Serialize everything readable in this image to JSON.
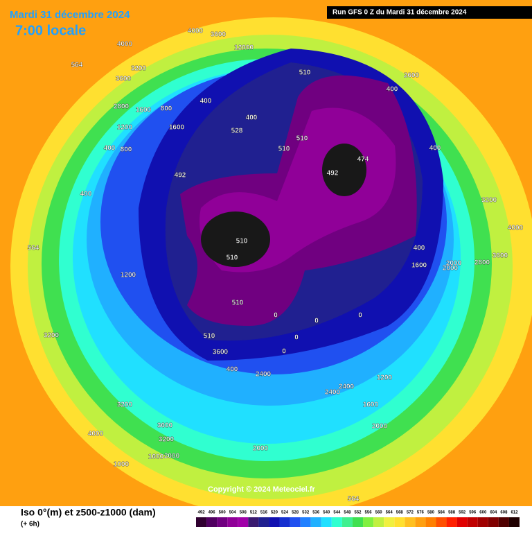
{
  "header": {
    "date": "Mardi 31 décembre 2024",
    "time": "7:00 locale",
    "run": "Run GFS 0 Z du Mardi 31 décembre 2024"
  },
  "footer": {
    "title": "Iso 0°(m) et z500-z1000 (dam)",
    "step": "(+ 6h)",
    "copyright": "Copyright © 2024 Meteociel.fr"
  },
  "legend": [
    {
      "value": 492,
      "color": "#300030"
    },
    {
      "value": 496,
      "color": "#500060"
    },
    {
      "value": 500,
      "color": "#700080"
    },
    {
      "value": 504,
      "color": "#900098"
    },
    {
      "value": 508,
      "color": "#a000a8"
    },
    {
      "value": 512,
      "color": "#3a1a70"
    },
    {
      "value": 516,
      "color": "#202090"
    },
    {
      "value": 520,
      "color": "#1010b0"
    },
    {
      "value": 524,
      "color": "#1530d0"
    },
    {
      "value": 528,
      "color": "#2050f0"
    },
    {
      "value": 532,
      "color": "#2080ff"
    },
    {
      "value": 536,
      "color": "#20b0ff"
    },
    {
      "value": 540,
      "color": "#20e0ff"
    },
    {
      "value": 544,
      "color": "#30ffd0"
    },
    {
      "value": 548,
      "color": "#40f090"
    },
    {
      "value": 552,
      "color": "#40e050"
    },
    {
      "value": 556,
      "color": "#80f040"
    },
    {
      "value": 560,
      "color": "#c0f040"
    },
    {
      "value": 564,
      "color": "#f0f040"
    },
    {
      "value": 568,
      "color": "#ffe030"
    },
    {
      "value": 572,
      "color": "#ffc020"
    },
    {
      "value": 576,
      "color": "#ffa010"
    },
    {
      "value": 580,
      "color": "#ff8000"
    },
    {
      "value": 584,
      "color": "#ff5000"
    },
    {
      "value": 588,
      "color": "#ff2000"
    },
    {
      "value": 592,
      "color": "#e00000"
    },
    {
      "value": 596,
      "color": "#c00000"
    },
    {
      "value": 600,
      "color": "#a00000"
    },
    {
      "value": 604,
      "color": "#800000"
    },
    {
      "value": 608,
      "color": "#500000"
    },
    {
      "value": 612,
      "color": "#200000"
    }
  ],
  "map": {
    "labels": [
      "4000",
      "3600",
      "4000",
      "12000",
      "3200",
      "3600",
      "2800",
      "1600",
      "800",
      "400",
      "400",
      "1200",
      "1600",
      "400",
      "800",
      "400",
      "1200",
      "528",
      "510",
      "510",
      "510",
      "492",
      "492",
      "474",
      "510",
      "510",
      "510",
      "510",
      "0",
      "0",
      "0",
      "0",
      "0",
      "400",
      "1600",
      "3600",
      "400",
      "3200",
      "3200",
      "3600",
      "3200",
      "4000",
      "1000",
      "1600",
      "2000",
      "2400",
      "2400",
      "2000",
      "1600",
      "1200",
      "2000",
      "400",
      "2000",
      "3200",
      "4000",
      "3600",
      "2800",
      "564",
      "564",
      "564",
      "400",
      "2600",
      "2000",
      "2400"
    ]
  }
}
